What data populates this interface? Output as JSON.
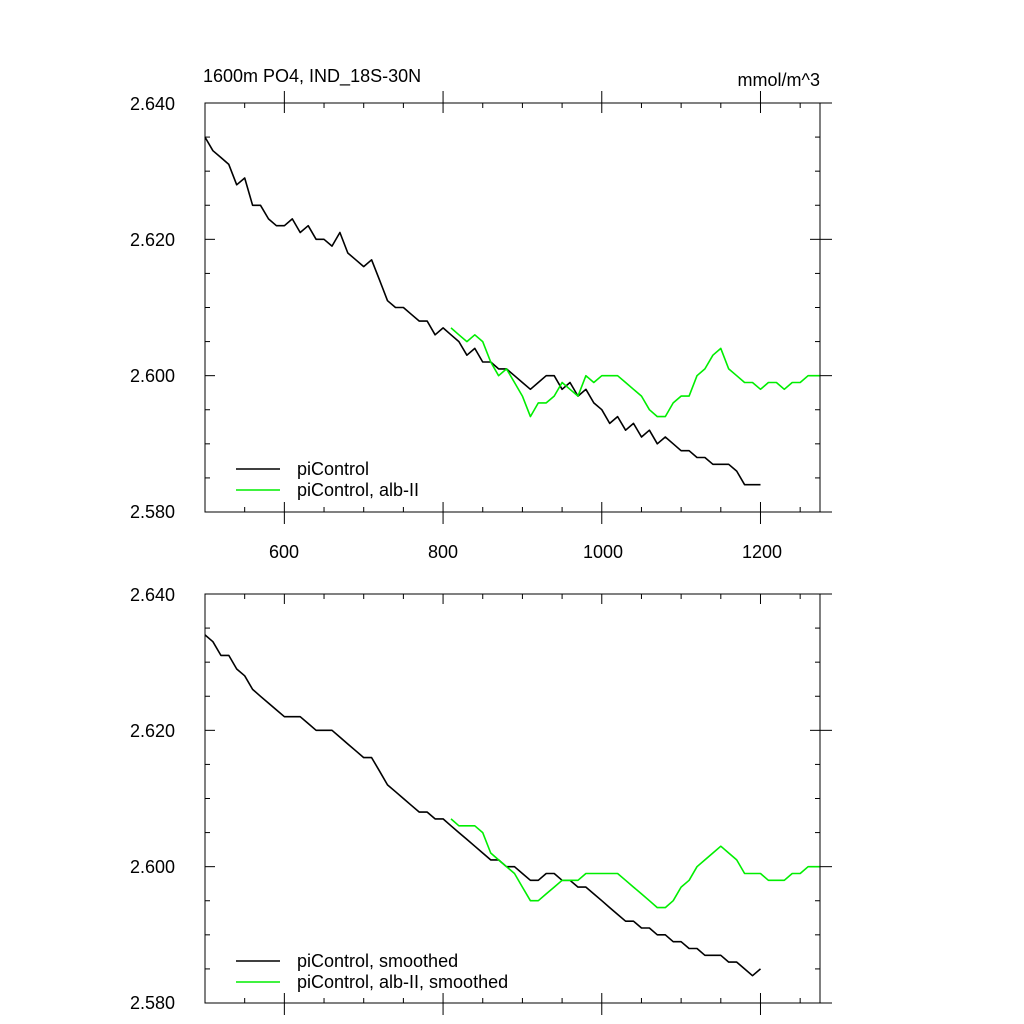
{
  "chart_data": [
    {
      "type": "line",
      "title": "1600m PO4, IND_18S-30N",
      "units": "mmol/m^3",
      "xlim": [
        500,
        1275
      ],
      "ylim": [
        2.58,
        2.64
      ],
      "xticks": [
        "600",
        "800",
        "1000",
        "1200"
      ],
      "yticks": [
        "2.640",
        "2.620",
        "2.600",
        "2.580"
      ],
      "legend_position": "bottom-left",
      "series": [
        {
          "name": "piControl",
          "color": "#000000",
          "x": [
            500,
            510,
            520,
            530,
            540,
            550,
            560,
            570,
            580,
            590,
            600,
            610,
            620,
            630,
            640,
            650,
            660,
            670,
            680,
            690,
            700,
            710,
            720,
            730,
            740,
            750,
            760,
            770,
            780,
            790,
            800,
            810,
            820,
            830,
            840,
            850,
            860,
            870,
            880,
            890,
            900,
            910,
            920,
            930,
            940,
            950,
            960,
            970,
            980,
            990,
            1000,
            1010,
            1020,
            1030,
            1040,
            1050,
            1060,
            1070,
            1080,
            1090,
            1100,
            1110,
            1120,
            1130,
            1140,
            1150,
            1160,
            1170,
            1180,
            1190,
            1200
          ],
          "y": [
            2.635,
            2.633,
            2.632,
            2.631,
            2.628,
            2.629,
            2.625,
            2.625,
            2.623,
            2.622,
            2.622,
            2.623,
            2.621,
            2.622,
            2.62,
            2.62,
            2.619,
            2.621,
            2.618,
            2.617,
            2.616,
            2.617,
            2.614,
            2.611,
            2.61,
            2.61,
            2.609,
            2.608,
            2.608,
            2.606,
            2.607,
            2.606,
            2.605,
            2.603,
            2.604,
            2.602,
            2.602,
            2.601,
            2.601,
            2.6,
            2.599,
            2.598,
            2.599,
            2.6,
            2.6,
            2.598,
            2.599,
            2.597,
            2.598,
            2.596,
            2.595,
            2.593,
            2.594,
            2.592,
            2.593,
            2.591,
            2.592,
            2.59,
            2.591,
            2.59,
            2.589,
            2.589,
            2.588,
            2.588,
            2.587,
            2.587,
            2.587,
            2.586,
            2.584,
            2.584,
            2.584
          ]
        },
        {
          "name": "piControl, alb-II",
          "color": "#00ee00",
          "x": [
            810,
            820,
            830,
            840,
            850,
            860,
            870,
            880,
            890,
            900,
            910,
            920,
            930,
            940,
            950,
            960,
            970,
            980,
            990,
            1000,
            1010,
            1020,
            1030,
            1040,
            1050,
            1060,
            1070,
            1080,
            1090,
            1100,
            1110,
            1120,
            1130,
            1140,
            1150,
            1160,
            1170,
            1180,
            1190,
            1200,
            1210,
            1220,
            1230,
            1240,
            1250,
            1260,
            1270,
            1275
          ],
          "y": [
            2.607,
            2.606,
            2.605,
            2.606,
            2.605,
            2.602,
            2.6,
            2.601,
            2.599,
            2.597,
            2.594,
            2.596,
            2.596,
            2.597,
            2.599,
            2.598,
            2.597,
            2.6,
            2.599,
            2.6,
            2.6,
            2.6,
            2.599,
            2.598,
            2.597,
            2.595,
            2.594,
            2.594,
            2.596,
            2.597,
            2.597,
            2.6,
            2.601,
            2.603,
            2.604,
            2.601,
            2.6,
            2.599,
            2.599,
            2.598,
            2.599,
            2.599,
            2.598,
            2.599,
            2.599,
            2.6,
            2.6,
            2.6
          ]
        }
      ]
    },
    {
      "type": "line",
      "xlim": [
        500,
        1275
      ],
      "ylim": [
        2.58,
        2.64
      ],
      "yticks": [
        "2.640",
        "2.620",
        "2.600",
        "2.580"
      ],
      "legend_position": "bottom-left",
      "series": [
        {
          "name": "piControl, smoothed",
          "color": "#000000",
          "x": [
            500,
            510,
            520,
            530,
            540,
            550,
            560,
            570,
            580,
            590,
            600,
            610,
            620,
            630,
            640,
            650,
            660,
            670,
            680,
            690,
            700,
            710,
            720,
            730,
            740,
            750,
            760,
            770,
            780,
            790,
            800,
            810,
            820,
            830,
            840,
            850,
            860,
            870,
            880,
            890,
            900,
            910,
            920,
            930,
            940,
            950,
            960,
            970,
            980,
            990,
            1000,
            1010,
            1020,
            1030,
            1040,
            1050,
            1060,
            1070,
            1080,
            1090,
            1100,
            1110,
            1120,
            1130,
            1140,
            1150,
            1160,
            1170,
            1180,
            1190,
            1200
          ],
          "y": [
            2.634,
            2.633,
            2.631,
            2.631,
            2.629,
            2.628,
            2.626,
            2.625,
            2.624,
            2.623,
            2.622,
            2.622,
            2.622,
            2.621,
            2.62,
            2.62,
            2.62,
            2.619,
            2.618,
            2.617,
            2.616,
            2.616,
            2.614,
            2.612,
            2.611,
            2.61,
            2.609,
            2.608,
            2.608,
            2.607,
            2.607,
            2.606,
            2.605,
            2.604,
            2.603,
            2.602,
            2.601,
            2.601,
            2.6,
            2.6,
            2.599,
            2.598,
            2.598,
            2.599,
            2.599,
            2.598,
            2.598,
            2.597,
            2.597,
            2.596,
            2.595,
            2.594,
            2.593,
            2.592,
            2.592,
            2.591,
            2.591,
            2.59,
            2.59,
            2.589,
            2.589,
            2.588,
            2.588,
            2.587,
            2.587,
            2.587,
            2.586,
            2.586,
            2.585,
            2.584,
            2.585
          ]
        },
        {
          "name": "piControl, alb-II, smoothed",
          "color": "#00ee00",
          "x": [
            810,
            820,
            830,
            840,
            850,
            860,
            870,
            880,
            890,
            900,
            910,
            920,
            930,
            940,
            950,
            960,
            970,
            980,
            990,
            1000,
            1010,
            1020,
            1030,
            1040,
            1050,
            1060,
            1070,
            1080,
            1090,
            1100,
            1110,
            1120,
            1130,
            1140,
            1150,
            1160,
            1170,
            1180,
            1190,
            1200,
            1210,
            1220,
            1230,
            1240,
            1250,
            1260,
            1270,
            1275
          ],
          "y": [
            2.607,
            2.606,
            2.606,
            2.606,
            2.605,
            2.602,
            2.601,
            2.6,
            2.599,
            2.597,
            2.595,
            2.595,
            2.596,
            2.597,
            2.598,
            2.598,
            2.598,
            2.599,
            2.599,
            2.599,
            2.599,
            2.599,
            2.598,
            2.597,
            2.596,
            2.595,
            2.594,
            2.594,
            2.595,
            2.597,
            2.598,
            2.6,
            2.601,
            2.602,
            2.603,
            2.602,
            2.601,
            2.599,
            2.599,
            2.599,
            2.598,
            2.598,
            2.598,
            2.599,
            2.599,
            2.6,
            2.6,
            2.6
          ]
        }
      ]
    }
  ]
}
